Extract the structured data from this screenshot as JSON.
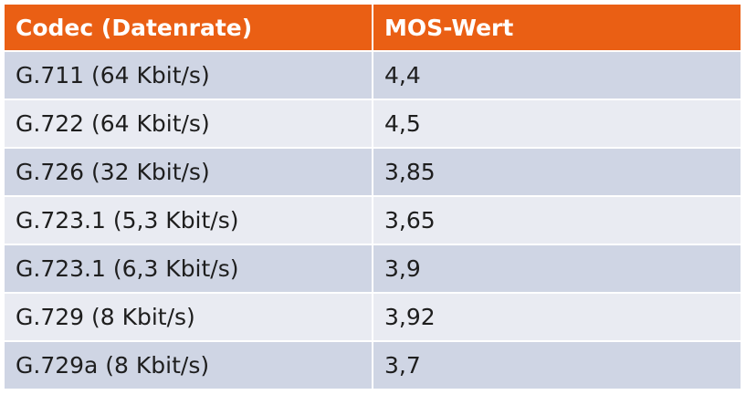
{
  "table": {
    "header": [
      "Codec (Datenrate)",
      "MOS-Wert"
    ],
    "rows": [
      [
        "G.711 (64 Kbit/s)",
        "4,4"
      ],
      [
        "G.722 (64 Kbit/s)",
        "4,5"
      ],
      [
        "G.726 (32 Kbit/s)",
        "3,85"
      ],
      [
        "G.723.1 (5,3 Kbit/s)",
        "3,65"
      ],
      [
        "G.723.1 (6,3 Kbit/s)",
        "3,9"
      ],
      [
        "G.729 (8 Kbit/s)",
        "3,92"
      ],
      [
        "G.729a (8 Kbit/s)",
        "3,7"
      ]
    ]
  }
}
